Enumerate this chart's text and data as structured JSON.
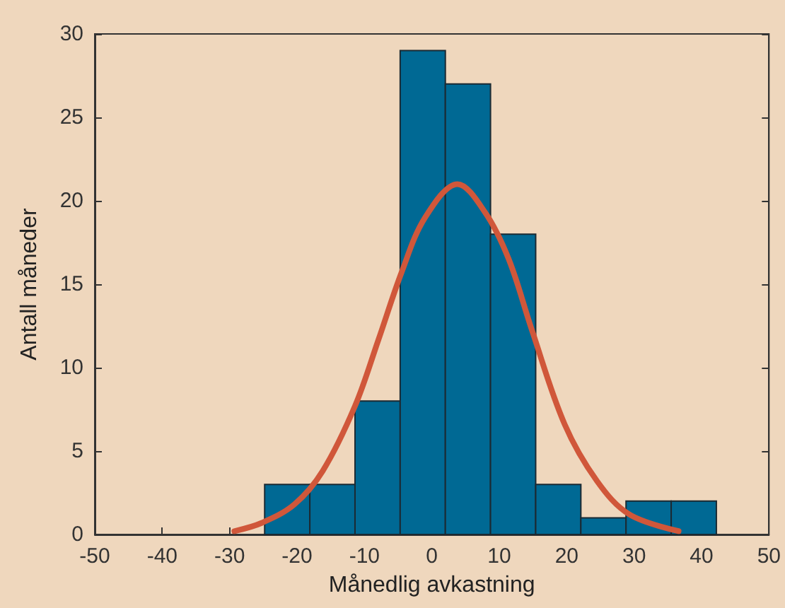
{
  "chart_data": {
    "type": "histogram",
    "xlabel": "Månedlig avkastning",
    "ylabel": "Antall måneder",
    "bins": [
      -24.8,
      -18.1,
      -11.4,
      -4.7,
      2.0,
      8.7,
      15.4,
      22.1,
      28.8,
      35.5,
      42.2
    ],
    "values": [
      3,
      3,
      8,
      29,
      27,
      18,
      3,
      1,
      2,
      2
    ],
    "color": "#006994",
    "series": [
      {
        "type": "line",
        "color": "#d0573a",
        "x": [
          -29.3,
          -25.2,
          -20.4,
          -16.2,
          -11.4,
          -7.9,
          -4.5,
          -1.0,
          3.8,
          7.9,
          11.4,
          14.8,
          19.7,
          24.5,
          29.3,
          36.6
        ],
        "values": [
          0.2,
          0.7,
          1.8,
          3.8,
          7.7,
          11.7,
          15.7,
          19.0,
          21.0,
          19.3,
          16.5,
          12.3,
          6.6,
          3.2,
          1.2,
          0.2
        ]
      }
    ],
    "xlim": [
      -50,
      50
    ],
    "xticks": [
      -50,
      -40,
      -30,
      -20,
      -10,
      0,
      10,
      20,
      30,
      40,
      50
    ],
    "ylim": [
      0,
      30
    ],
    "yticks": [
      0,
      5,
      10,
      15,
      20,
      25,
      30
    ],
    "grid": false
  }
}
